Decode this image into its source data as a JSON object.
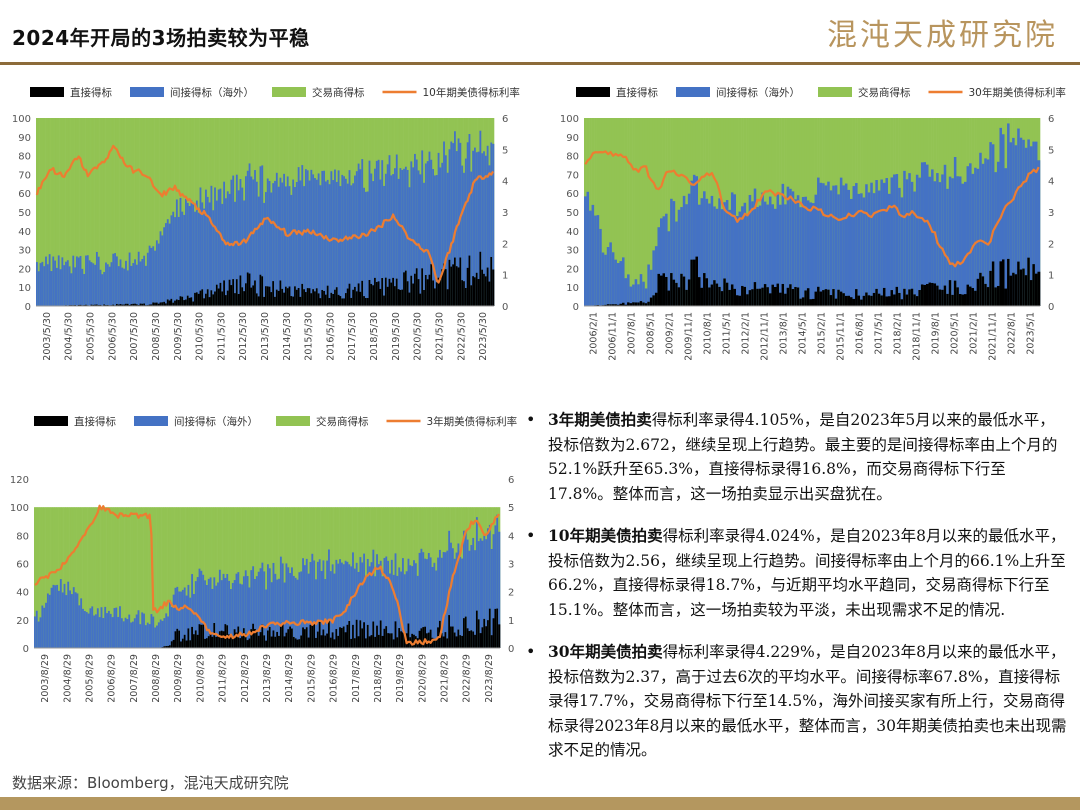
{
  "page": {
    "title": "2024年开局的3场拍卖较为平稳",
    "logo": "混沌天成研究院",
    "source": "数据来源：Bloomberg，混沌天成研究院"
  },
  "colors": {
    "direct": "#000000",
    "indirect": "#4472c4",
    "dealer": "#92c353",
    "rate": "#ed7d31"
  },
  "bullets": [
    {
      "head": "3年期美债拍卖",
      "text": "得标利率录得4.105%，是自2023年5月以来的最低水平，投标倍数为2.672，继续呈现上行趋势。最主要的是间接得标率由上个月的52.1%跃升至65.3%，直接得标录得16.8%，而交易商得标下行至17.8%。整体而言，这一场拍卖显示出买盘犹在。"
    },
    {
      "head": "10年期美债拍卖",
      "text": "得标利率录得4.024%，是自2023年8月以来的最低水平，投标倍数为2.56，继续呈现上行趋势。间接得标率由上个月的66.1%上升至66.2%，直接得标录得18.7%，与近期平均水平趋同，交易商得标下行至15.1%。整体而言，这一场拍卖较为平淡，未出现需求不足的情况."
    },
    {
      "head": "30年期美债拍卖",
      "text": "得标利率录得4.229%，是自2023年8月以来的最低水平，投标倍数为2.37，高于过去6次的平均水平。间接得标率67.8%，直接得标录得17.7%，交易商得标下行至14.5%，海外间接买家有所上行，交易商得标录得2023年8月以来的最低水平，整体而言，30年期美债拍卖也未出现需求不足的情况。"
    }
  ],
  "chart_data": [
    {
      "type": "bar",
      "stacked": true,
      "legend": [
        "直接得标",
        "间接得标（海外）",
        "交易商得标",
        "10年期美债得标利率"
      ],
      "legend_position": "top",
      "left_ylim": [
        0,
        100
      ],
      "left_yticks": [
        0,
        10,
        20,
        30,
        40,
        50,
        60,
        70,
        80,
        90,
        100
      ],
      "right_ylim": [
        0,
        6
      ],
      "right_yticks": [
        0,
        1,
        2,
        3,
        4,
        5,
        6
      ],
      "x_tick_labels": [
        "2003/5/30",
        "2004/5/30",
        "2005/5/30",
        "2006/5/30",
        "2007/5/30",
        "2008/5/30",
        "2009/5/30",
        "2010/5/30",
        "2011/5/30",
        "2012/5/30",
        "2013/5/30",
        "2014/5/30",
        "2015/5/30",
        "2016/5/30",
        "2017/5/30",
        "2018/5/30",
        "2019/5/30",
        "2020/5/30",
        "2021/5/30",
        "2022/5/30",
        "2023/5/30"
      ],
      "n_auctions": 252,
      "direct_profile": [
        [
          0,
          0
        ],
        [
          0.25,
          1
        ],
        [
          0.32,
          4
        ],
        [
          0.36,
          6
        ],
        [
          0.45,
          12
        ],
        [
          0.55,
          9
        ],
        [
          0.65,
          7
        ],
        [
          0.75,
          10
        ],
        [
          0.85,
          14
        ],
        [
          0.93,
          18
        ],
        [
          1,
          20
        ]
      ],
      "direct_amplitude": 0.55,
      "indirect_profile": [
        [
          0,
          24
        ],
        [
          0.12,
          22
        ],
        [
          0.2,
          22
        ],
        [
          0.25,
          28
        ],
        [
          0.3,
          48
        ],
        [
          0.4,
          50
        ],
        [
          0.5,
          56
        ],
        [
          0.6,
          60
        ],
        [
          0.7,
          62
        ],
        [
          0.8,
          60
        ],
        [
          0.9,
          62
        ],
        [
          1,
          66
        ]
      ],
      "rate_profile": [
        [
          0,
          3.6
        ],
        [
          0.03,
          4.4
        ],
        [
          0.06,
          4.1
        ],
        [
          0.09,
          4.8
        ],
        [
          0.11,
          4.2
        ],
        [
          0.14,
          4.5
        ],
        [
          0.17,
          5.1
        ],
        [
          0.2,
          4.4
        ],
        [
          0.24,
          4.2
        ],
        [
          0.27,
          3.5
        ],
        [
          0.3,
          3.8
        ],
        [
          0.33,
          3.4
        ],
        [
          0.37,
          2.9
        ],
        [
          0.42,
          1.9
        ],
        [
          0.46,
          2.1
        ],
        [
          0.5,
          2.8
        ],
        [
          0.55,
          2.3
        ],
        [
          0.6,
          2.4
        ],
        [
          0.65,
          2.1
        ],
        [
          0.7,
          2.2
        ],
        [
          0.74,
          2.4
        ],
        [
          0.78,
          2.9
        ],
        [
          0.82,
          2.1
        ],
        [
          0.86,
          1.7
        ],
        [
          0.88,
          0.7
        ],
        [
          0.9,
          1.6
        ],
        [
          0.93,
          2.9
        ],
        [
          0.96,
          4.0
        ],
        [
          1,
          4.3
        ]
      ]
    },
    {
      "type": "bar",
      "stacked": true,
      "legend": [
        "直接得标",
        "间接得标（海外）",
        "交易商得标",
        "30年期美债得标利率"
      ],
      "legend_position": "top",
      "left_ylim": [
        0,
        100
      ],
      "left_yticks": [
        0,
        10,
        20,
        30,
        40,
        50,
        60,
        70,
        80,
        90,
        100
      ],
      "right_ylim": [
        0,
        6
      ],
      "right_yticks": [
        0,
        1,
        2,
        3,
        4,
        5,
        6
      ],
      "x_tick_labels": [
        "2006/2/1",
        "2006/11/1",
        "2007/8/1",
        "2008/5/1",
        "2009/2/1",
        "2009/11/1",
        "2010/8/1",
        "2011/5/1",
        "2012/2/1",
        "2012/11/1",
        "2013/8/1",
        "2014/5/1",
        "2015/2/1",
        "2015/11/1",
        "2016/8/1",
        "2017/5/1",
        "2018/2/1",
        "2018/11/1",
        "2019/8/1",
        "2020/5/1",
        "2021/2/1",
        "2021/11/1",
        "2022/8/1",
        "2023/5/1"
      ],
      "n_auctions": 180,
      "direct_profile": [
        [
          0,
          0
        ],
        [
          0.14,
          2
        ],
        [
          0.16,
          12
        ],
        [
          0.2,
          14
        ],
        [
          0.25,
          18
        ],
        [
          0.3,
          10
        ],
        [
          0.4,
          9
        ],
        [
          0.5,
          7
        ],
        [
          0.6,
          6
        ],
        [
          0.7,
          7
        ],
        [
          0.78,
          9
        ],
        [
          0.85,
          13
        ],
        [
          0.92,
          17
        ],
        [
          1,
          19
        ]
      ],
      "direct_amplitude": 0.5,
      "indirect_profile": [
        [
          0,
          64
        ],
        [
          0.02,
          50
        ],
        [
          0.04,
          31
        ],
        [
          0.08,
          27
        ],
        [
          0.1,
          10
        ],
        [
          0.14,
          14
        ],
        [
          0.18,
          36
        ],
        [
          0.25,
          44
        ],
        [
          0.3,
          44
        ],
        [
          0.4,
          45
        ],
        [
          0.5,
          52
        ],
        [
          0.6,
          57
        ],
        [
          0.7,
          60
        ],
        [
          0.8,
          60
        ],
        [
          0.88,
          64
        ],
        [
          0.95,
          68
        ],
        [
          1,
          65
        ]
      ],
      "rate_profile": [
        [
          0,
          4.6
        ],
        [
          0.03,
          5.0
        ],
        [
          0.06,
          4.8
        ],
        [
          0.09,
          4.8
        ],
        [
          0.11,
          4.3
        ],
        [
          0.13,
          4.5
        ],
        [
          0.16,
          3.6
        ],
        [
          0.18,
          4.4
        ],
        [
          0.2,
          4.2
        ],
        [
          0.24,
          3.9
        ],
        [
          0.28,
          4.3
        ],
        [
          0.31,
          3.0
        ],
        [
          0.34,
          2.7
        ],
        [
          0.37,
          3.1
        ],
        [
          0.4,
          3.7
        ],
        [
          0.44,
          3.5
        ],
        [
          0.48,
          3.2
        ],
        [
          0.52,
          3.0
        ],
        [
          0.56,
          2.7
        ],
        [
          0.6,
          3.0
        ],
        [
          0.64,
          2.9
        ],
        [
          0.68,
          3.2
        ],
        [
          0.7,
          2.8
        ],
        [
          0.72,
          3.0
        ],
        [
          0.76,
          2.6
        ],
        [
          0.78,
          2.0
        ],
        [
          0.81,
          1.3
        ],
        [
          0.84,
          1.5
        ],
        [
          0.86,
          2.1
        ],
        [
          0.89,
          2.0
        ],
        [
          0.92,
          3.0
        ],
        [
          0.95,
          3.6
        ],
        [
          0.98,
          4.2
        ],
        [
          1,
          4.4
        ]
      ]
    },
    {
      "type": "bar",
      "stacked": true,
      "legend": [
        "直接得标",
        "间接得标（海外）",
        "交易商得标",
        "3年期美债得标利率"
      ],
      "legend_position": "top",
      "left_ylim": [
        0,
        120
      ],
      "left_yticks": [
        0,
        20,
        40,
        60,
        80,
        100,
        120
      ],
      "right_ylim": [
        0,
        6
      ],
      "right_yticks": [
        0,
        1,
        2,
        3,
        4,
        5,
        6
      ],
      "x_tick_labels": [
        "2003/8/29",
        "2004/8/29",
        "2005/8/29",
        "2006/8/29",
        "2007/8/29",
        "2008/8/29",
        "2009/8/29",
        "2010/8/29",
        "2011/8/29",
        "2012/8/29",
        "2013/8/29",
        "2014/8/29",
        "2015/8/29",
        "2016/8/29",
        "2017/8/29",
        "2018/8/29",
        "2019/8/29",
        "2020/8/29",
        "2021/8/29",
        "2022/8/29",
        "2023/8/29"
      ],
      "n_auctions": 252,
      "direct_profile": [
        [
          0,
          0
        ],
        [
          0.27,
          0
        ],
        [
          0.29,
          2
        ],
        [
          0.3,
          10
        ],
        [
          0.4,
          12
        ],
        [
          0.5,
          11
        ],
        [
          0.6,
          13
        ],
        [
          0.7,
          14
        ],
        [
          0.8,
          12
        ],
        [
          0.85,
          10
        ],
        [
          0.9,
          16
        ],
        [
          1,
          21
        ]
      ],
      "direct_amplitude": 0.55,
      "indirect_profile": [
        [
          0,
          18
        ],
        [
          0.04,
          46
        ],
        [
          0.08,
          40
        ],
        [
          0.12,
          26
        ],
        [
          0.18,
          24
        ],
        [
          0.26,
          19
        ],
        [
          0.28,
          22
        ],
        [
          0.3,
          32
        ],
        [
          0.4,
          38
        ],
        [
          0.5,
          42
        ],
        [
          0.6,
          46
        ],
        [
          0.7,
          46
        ],
        [
          0.8,
          47
        ],
        [
          0.9,
          58
        ],
        [
          1,
          64
        ]
      ],
      "rate_profile": [
        [
          0,
          2.3
        ],
        [
          0.02,
          2.5
        ],
        [
          0.05,
          2.7
        ],
        [
          0.08,
          3.4
        ],
        [
          0.11,
          4.1
        ],
        [
          0.13,
          4.6
        ],
        [
          0.14,
          5.0
        ],
        [
          0.16,
          4.9
        ],
        [
          0.18,
          4.7
        ],
        [
          0.21,
          4.7
        ],
        [
          0.25,
          4.7
        ],
        [
          0.255,
          1.3
        ],
        [
          0.27,
          1.4
        ],
        [
          0.29,
          1.7
        ],
        [
          0.31,
          1.3
        ],
        [
          0.33,
          1.5
        ],
        [
          0.36,
          0.9
        ],
        [
          0.38,
          0.5
        ],
        [
          0.42,
          0.4
        ],
        [
          0.46,
          0.5
        ],
        [
          0.5,
          0.8
        ],
        [
          0.55,
          0.9
        ],
        [
          0.6,
          0.9
        ],
        [
          0.64,
          0.95
        ],
        [
          0.67,
          1.4
        ],
        [
          0.7,
          2.2
        ],
        [
          0.72,
          2.6
        ],
        [
          0.74,
          2.9
        ],
        [
          0.76,
          2.5
        ],
        [
          0.78,
          1.7
        ],
        [
          0.8,
          0.2
        ],
        [
          0.83,
          0.2
        ],
        [
          0.87,
          0.3
        ],
        [
          0.9,
          2.5
        ],
        [
          0.93,
          4.2
        ],
        [
          0.95,
          4.6
        ],
        [
          0.97,
          4.0
        ],
        [
          1,
          4.8
        ]
      ]
    }
  ]
}
